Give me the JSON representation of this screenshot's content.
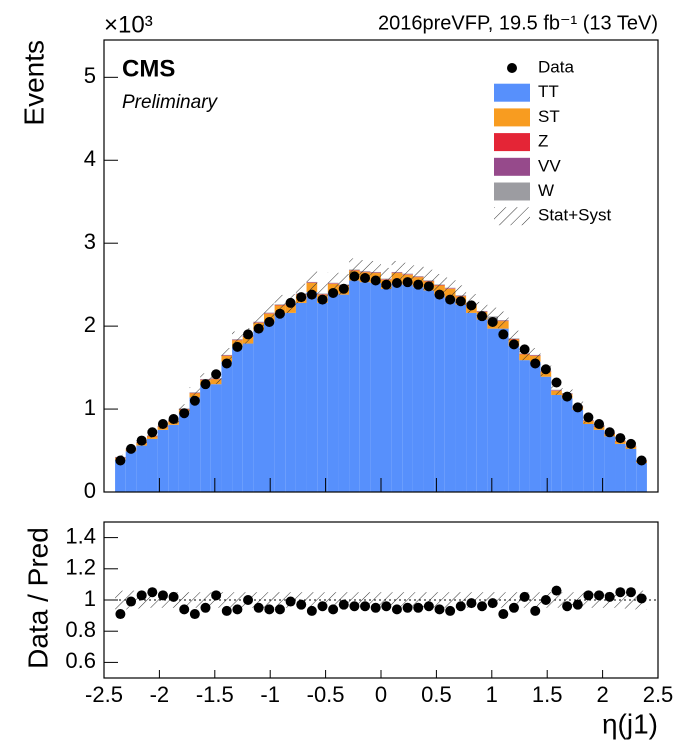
{
  "chart_data": [
    {
      "type": "histogram",
      "experiment": "CMS",
      "status": "Preliminary",
      "lumi_label": "2016preVFP, 19.5 fb⁻¹ (13 TeV)",
      "ylabel": "Events",
      "multiplier": "×10³",
      "ylim": [
        0,
        5.45
      ],
      "yticks": [
        0,
        1,
        2,
        3,
        4,
        5
      ],
      "bins": [
        -2.4,
        -2.304,
        -2.208,
        -2.112,
        -2.016,
        -1.92,
        -1.824,
        -1.728,
        -1.632,
        -1.536,
        -1.44,
        -1.344,
        -1.248,
        -1.152,
        -1.056,
        -0.96,
        -0.864,
        -0.768,
        -0.672,
        -0.576,
        -0.48,
        -0.384,
        -0.288,
        -0.192,
        -0.096,
        0,
        0.096,
        0.192,
        0.288,
        0.384,
        0.48,
        0.576,
        0.672,
        0.768,
        0.864,
        0.96,
        1.056,
        1.152,
        1.248,
        1.344,
        1.44,
        1.536,
        1.632,
        1.728,
        1.824,
        1.92,
        2.016,
        2.112,
        2.208,
        2.304,
        2.4
      ],
      "data": {
        "name": "Data",
        "color": "#000000",
        "values": [
          0.38,
          0.52,
          0.62,
          0.72,
          0.82,
          0.88,
          0.95,
          1.1,
          1.3,
          1.42,
          1.55,
          1.75,
          1.9,
          1.97,
          2.05,
          2.15,
          2.28,
          2.35,
          2.38,
          2.32,
          2.4,
          2.45,
          2.6,
          2.58,
          2.55,
          2.5,
          2.52,
          2.53,
          2.5,
          2.48,
          2.38,
          2.32,
          2.3,
          2.25,
          2.12,
          2.05,
          1.9,
          1.78,
          1.72,
          1.55,
          1.48,
          1.32,
          1.15,
          1.02,
          0.9,
          0.82,
          0.72,
          0.65,
          0.58,
          0.38
        ]
      },
      "series": [
        {
          "name": "TT",
          "color": "#5790fc",
          "values": [
            0.39,
            0.49,
            0.56,
            0.64,
            0.75,
            0.81,
            0.95,
            1.14,
            1.29,
            1.3,
            1.57,
            1.75,
            1.79,
            1.95,
            2.05,
            2.15,
            2.16,
            2.28,
            2.41,
            2.28,
            2.4,
            2.38,
            2.55,
            2.53,
            2.52,
            2.45,
            2.52,
            2.5,
            2.47,
            2.43,
            2.38,
            2.34,
            2.26,
            2.16,
            2.08,
            1.97,
            1.97,
            1.76,
            1.59,
            1.57,
            1.39,
            1.17,
            1.13,
            0.99,
            0.82,
            0.75,
            0.67,
            0.58,
            0.52,
            0.35
          ]
        },
        {
          "name": "ST",
          "color": "#f89c20",
          "values": [
            0.02,
            0.025,
            0.03,
            0.03,
            0.035,
            0.04,
            0.045,
            0.05,
            0.06,
            0.06,
            0.07,
            0.08,
            0.08,
            0.09,
            0.1,
            0.1,
            0.1,
            0.1,
            0.11,
            0.1,
            0.11,
            0.11,
            0.12,
            0.12,
            0.12,
            0.11,
            0.12,
            0.12,
            0.12,
            0.11,
            0.11,
            0.11,
            0.1,
            0.1,
            0.09,
            0.09,
            0.09,
            0.08,
            0.07,
            0.07,
            0.06,
            0.05,
            0.05,
            0.04,
            0.035,
            0.035,
            0.03,
            0.03,
            0.025,
            0.02
          ]
        },
        {
          "name": "Z",
          "color": "#e42536",
          "values": [
            0.005,
            0.005,
            0.005,
            0.005,
            0.005,
            0.005,
            0.005,
            0.005,
            0.005,
            0.005,
            0.005,
            0.005,
            0.005,
            0.005,
            0.005,
            0.005,
            0.005,
            0.005,
            0.005,
            0.005,
            0.005,
            0.005,
            0.005,
            0.005,
            0.005,
            0.005,
            0.005,
            0.005,
            0.005,
            0.005,
            0.005,
            0.005,
            0.005,
            0.005,
            0.005,
            0.005,
            0.005,
            0.005,
            0.005,
            0.005,
            0.005,
            0.005,
            0.005,
            0.005,
            0.005,
            0.005,
            0.005,
            0.005,
            0.005,
            0.005
          ]
        },
        {
          "name": "VV",
          "color": "#964a8b",
          "values": [
            0.002,
            0.002,
            0.002,
            0.002,
            0.002,
            0.002,
            0.002,
            0.002,
            0.002,
            0.002,
            0.002,
            0.002,
            0.002,
            0.002,
            0.002,
            0.002,
            0.002,
            0.002,
            0.002,
            0.002,
            0.002,
            0.002,
            0.002,
            0.002,
            0.002,
            0.002,
            0.002,
            0.002,
            0.002,
            0.002,
            0.002,
            0.002,
            0.002,
            0.002,
            0.002,
            0.002,
            0.002,
            0.002,
            0.002,
            0.002,
            0.002,
            0.002,
            0.002,
            0.002,
            0.002,
            0.002,
            0.002,
            0.002,
            0.002,
            0.002
          ]
        },
        {
          "name": "W",
          "color": "#9c9ca1",
          "values": [
            0.006,
            0.006,
            0.006,
            0.006,
            0.006,
            0.006,
            0.006,
            0.006,
            0.006,
            0.006,
            0.006,
            0.006,
            0.006,
            0.006,
            0.006,
            0.006,
            0.006,
            0.006,
            0.006,
            0.006,
            0.006,
            0.006,
            0.006,
            0.006,
            0.006,
            0.006,
            0.006,
            0.006,
            0.006,
            0.006,
            0.006,
            0.006,
            0.006,
            0.006,
            0.006,
            0.05,
            0.006,
            0.006,
            0.006,
            0.006,
            0.006,
            0.006,
            0.006,
            0.006,
            0.006,
            0.006,
            0.006,
            0.006,
            0.006,
            0.006
          ]
        }
      ],
      "uncertainty": {
        "name": "Stat+Syst",
        "values": [
          0.06,
          0.06,
          0.055,
          0.05,
          0.05,
          0.05,
          0.05,
          0.05,
          0.05,
          0.05,
          0.05,
          0.05,
          0.05,
          0.05,
          0.05,
          0.05,
          0.05,
          0.05,
          0.05,
          0.05,
          0.05,
          0.05,
          0.05,
          0.05,
          0.05,
          0.05,
          0.05,
          0.05,
          0.05,
          0.05,
          0.05,
          0.05,
          0.05,
          0.05,
          0.05,
          0.05,
          0.05,
          0.05,
          0.05,
          0.05,
          0.05,
          0.05,
          0.05,
          0.05,
          0.05,
          0.05,
          0.05,
          0.055,
          0.06,
          0.06
        ]
      }
    },
    {
      "type": "scatter",
      "ylabel": "Data / Pred",
      "xlabel": "η(j1)",
      "xlim": [
        -2.5,
        2.5
      ],
      "xticks": [
        -2.5,
        -2,
        -1.5,
        -1,
        -0.5,
        0,
        0.5,
        1,
        1.5,
        2,
        2.5
      ],
      "ylim": [
        0.5,
        1.5
      ],
      "yticks": [
        0.6,
        0.8,
        1,
        1.2,
        1.4
      ],
      "hline": 1,
      "values": [
        0.91,
        0.99,
        1.03,
        1.05,
        1.03,
        1.02,
        0.94,
        0.91,
        0.95,
        1.03,
        0.93,
        0.94,
        1.0,
        0.95,
        0.94,
        0.94,
        0.99,
        0.97,
        0.93,
        0.96,
        0.94,
        0.97,
        0.96,
        0.96,
        0.95,
        0.96,
        0.94,
        0.95,
        0.95,
        0.96,
        0.94,
        0.93,
        0.96,
        0.98,
        0.96,
        0.98,
        0.91,
        0.95,
        1.02,
        0.93,
        1.0,
        1.06,
        0.96,
        0.97,
        1.03,
        1.03,
        1.02,
        1.05,
        1.05,
        1.01
      ]
    }
  ]
}
